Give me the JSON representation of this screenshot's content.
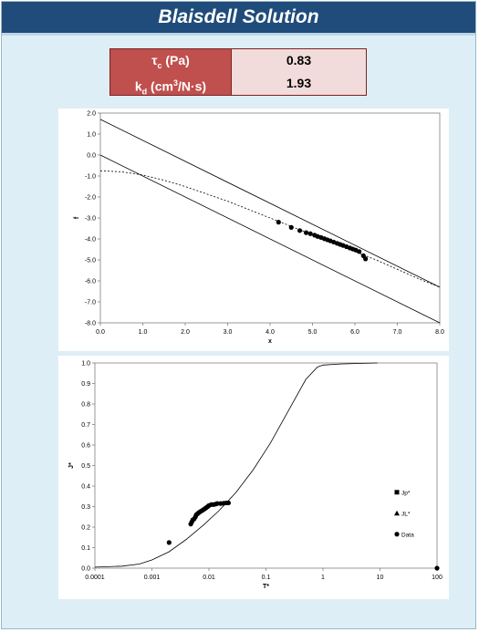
{
  "header": {
    "title": "Blaisdell Solution"
  },
  "params": [
    {
      "symbol": "τ",
      "sub": "c",
      "unit": " (Pa)",
      "value": "0.83"
    },
    {
      "symbol": "k",
      "sub": "d",
      "unit_pre": " (cm",
      "sup": "3",
      "unit_post": "/N·s)",
      "value": "1.93"
    }
  ],
  "chart_data": [
    {
      "type": "line",
      "xlabel": "x",
      "ylabel": "f",
      "xlim": [
        0.0,
        8.0
      ],
      "ylim": [
        -8.0,
        2.0
      ],
      "xticks": [
        0.0,
        1.0,
        2.0,
        3.0,
        4.0,
        5.0,
        6.0,
        7.0,
        8.0
      ],
      "xtick_labels": [
        "0.0",
        "1.0",
        "2.0",
        "3.0",
        "4.0",
        "5.0",
        "6.0",
        "7.0",
        "8.0"
      ],
      "yticks": [
        2.0,
        1.0,
        0.0,
        -1.0,
        -2.0,
        -3.0,
        -4.0,
        -5.0,
        -6.0,
        -7.0,
        -8.0
      ],
      "ytick_labels": [
        "2.0",
        "1.0",
        "0.0",
        "-1.0",
        "-2.0",
        "-3.0",
        "-4.0",
        "-5.0",
        "-6.0",
        "-7.0",
        "-8.0"
      ],
      "grid": false,
      "series": [
        {
          "style": "solid",
          "x": [
            0.0,
            8.0
          ],
          "y": [
            1.7,
            -6.3
          ]
        },
        {
          "style": "solid",
          "x": [
            0.0,
            8.0
          ],
          "y": [
            0.0,
            -8.0
          ]
        },
        {
          "style": "dashed",
          "x": [
            0.0,
            0.5,
            1.0,
            1.5,
            2.0,
            2.5,
            3.0,
            3.5,
            4.0,
            4.5,
            5.0,
            5.5,
            6.0,
            6.5,
            7.0,
            7.5,
            8.0
          ],
          "y": [
            -0.75,
            -0.8,
            -0.95,
            -1.2,
            -1.5,
            -1.85,
            -2.2,
            -2.6,
            -3.0,
            -3.4,
            -3.8,
            -4.2,
            -4.6,
            -5.0,
            -5.45,
            -5.9,
            -6.3
          ]
        },
        {
          "style": "markers",
          "x": [
            4.2,
            4.5,
            4.7,
            4.85,
            4.95,
            5.05,
            5.12,
            5.2,
            5.28,
            5.35,
            5.42,
            5.5,
            5.58,
            5.65,
            5.72,
            5.8,
            5.88,
            5.95,
            6.02,
            6.1,
            6.2,
            6.25
          ],
          "y": [
            -3.2,
            -3.45,
            -3.6,
            -3.7,
            -3.75,
            -3.82,
            -3.88,
            -3.93,
            -3.99,
            -4.04,
            -4.09,
            -4.15,
            -4.21,
            -4.26,
            -4.31,
            -4.37,
            -4.43,
            -4.48,
            -4.53,
            -4.6,
            -4.8,
            -4.95
          ]
        }
      ]
    },
    {
      "type": "scatter",
      "xlabel": "T*",
      "ylabel": "J*",
      "xscale": "log",
      "xlim": [
        0.0001,
        100
      ],
      "ylim": [
        0.0,
        1.0
      ],
      "xticks": [
        0.0001,
        0.001,
        0.01,
        0.1,
        1,
        10,
        100
      ],
      "xtick_labels": [
        "0.0001",
        "0.001",
        "0.01",
        "0.1",
        "1",
        "10",
        "100"
      ],
      "yticks": [
        0.0,
        0.1,
        0.2,
        0.3,
        0.4,
        0.5,
        0.6,
        0.7,
        0.8,
        0.9,
        1.0
      ],
      "ytick_labels": [
        "0.0",
        "0.1",
        "0.2",
        "0.3",
        "0.4",
        "0.5",
        "0.6",
        "0.7",
        "0.8",
        "0.9",
        "1.0"
      ],
      "grid": false,
      "legend_position": "right",
      "legend": [
        {
          "marker": "square",
          "label": "Jp*"
        },
        {
          "marker": "triangle",
          "label": "JL*"
        },
        {
          "marker": "circle",
          "label": "Data"
        }
      ],
      "series": [
        {
          "style": "solid",
          "x": [
            0.0001,
            0.0003,
            0.0006,
            0.001,
            0.002,
            0.004,
            0.008,
            0.015,
            0.03,
            0.06,
            0.12,
            0.25,
            0.5,
            0.8,
            1.0,
            2.0,
            5.0,
            9.0
          ],
          "y": [
            0.005,
            0.01,
            0.02,
            0.04,
            0.08,
            0.14,
            0.21,
            0.28,
            0.37,
            0.48,
            0.61,
            0.77,
            0.92,
            0.98,
            0.99,
            0.995,
            0.998,
            1.0
          ]
        },
        {
          "style": "markers",
          "x": [
            0.002,
            0.0048,
            0.005,
            0.0052,
            0.0055,
            0.0058,
            0.006,
            0.0063,
            0.0066,
            0.007,
            0.0075,
            0.008,
            0.0085,
            0.009,
            0.0095,
            0.01,
            0.011,
            0.012,
            0.013,
            0.014,
            0.016,
            0.018,
            0.02,
            0.022,
            100
          ],
          "y": [
            0.125,
            0.215,
            0.225,
            0.235,
            0.24,
            0.25,
            0.26,
            0.265,
            0.27,
            0.275,
            0.28,
            0.285,
            0.29,
            0.295,
            0.3,
            0.305,
            0.31,
            0.31,
            0.312,
            0.315,
            0.315,
            0.316,
            0.318,
            0.318,
            0.0
          ]
        }
      ]
    }
  ]
}
